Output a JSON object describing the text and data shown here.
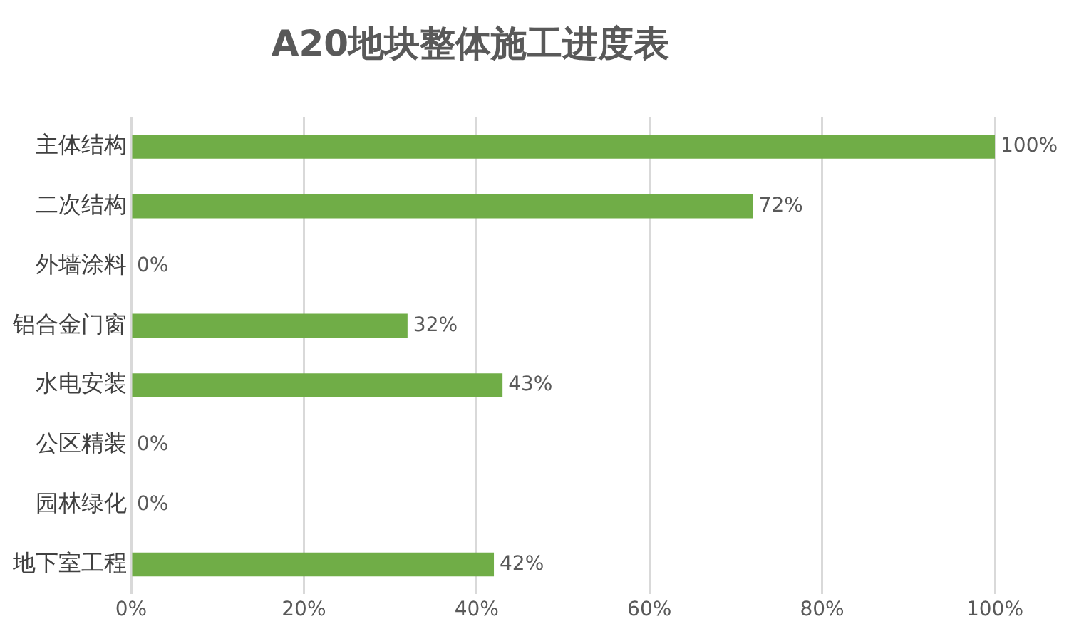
{
  "chart_data": {
    "type": "bar",
    "orientation": "horizontal",
    "title": "A20地块整体施工进度表",
    "categories": [
      "主体结构",
      "二次结构",
      "外墙涂料",
      "铝合金门窗",
      "水电安装",
      "公区精装",
      "园林绿化",
      "地下室工程"
    ],
    "values": [
      100,
      72,
      0,
      32,
      43,
      0,
      0,
      42
    ],
    "value_labels": [
      "100%",
      "72%",
      "0%",
      "32%",
      "43%",
      "0%",
      "0%",
      "42%"
    ],
    "color": "#70ad47",
    "xlim": [
      0,
      100
    ],
    "xticks": [
      {
        "value": 0,
        "label": "0%"
      },
      {
        "value": 20,
        "label": "20%"
      },
      {
        "value": 40,
        "label": "40%"
      },
      {
        "value": 60,
        "label": "60%"
      },
      {
        "value": 80,
        "label": "80%"
      },
      {
        "value": 100,
        "label": "100%"
      }
    ],
    "grid": "x",
    "legend": false
  }
}
